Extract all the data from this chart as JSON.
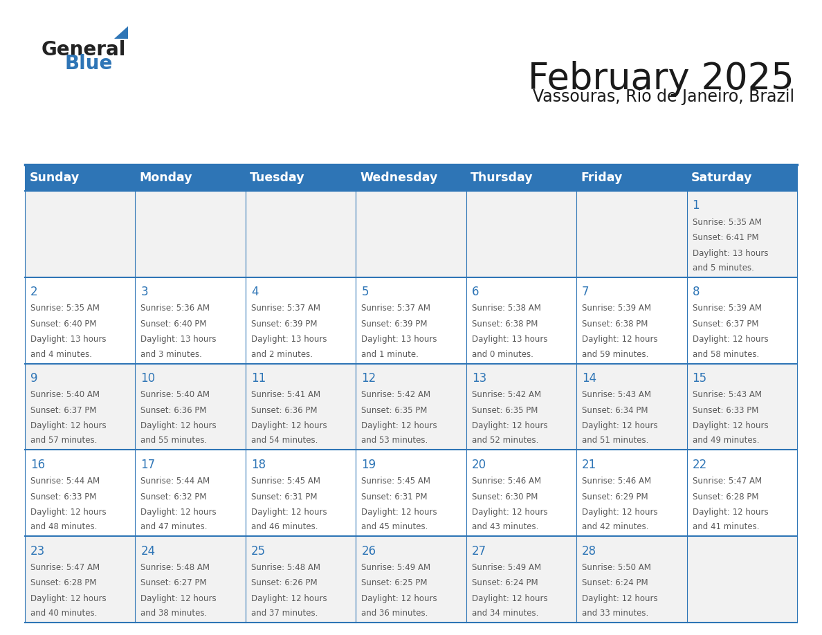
{
  "title": "February 2025",
  "subtitle": "Vassouras, Rio de Janeiro, Brazil",
  "header_bg": "#2e75b6",
  "header_text_color": "#ffffff",
  "cell_bg_week1": "#f2f2f2",
  "cell_bg_week2": "#ffffff",
  "cell_bg_week3": "#f2f2f2",
  "cell_bg_week4": "#ffffff",
  "cell_bg_week5": "#f2f2f2",
  "day_number_color": "#2e75b6",
  "info_text_color": "#595959",
  "border_color": "#2e75b6",
  "days_of_week": [
    "Sunday",
    "Monday",
    "Tuesday",
    "Wednesday",
    "Thursday",
    "Friday",
    "Saturday"
  ],
  "weeks": [
    [
      {
        "day": null,
        "sunrise": null,
        "sunset": null,
        "daylight": null
      },
      {
        "day": null,
        "sunrise": null,
        "sunset": null,
        "daylight": null
      },
      {
        "day": null,
        "sunrise": null,
        "sunset": null,
        "daylight": null
      },
      {
        "day": null,
        "sunrise": null,
        "sunset": null,
        "daylight": null
      },
      {
        "day": null,
        "sunrise": null,
        "sunset": null,
        "daylight": null
      },
      {
        "day": null,
        "sunrise": null,
        "sunset": null,
        "daylight": null
      },
      {
        "day": 1,
        "sunrise": "5:35 AM",
        "sunset": "6:41 PM",
        "daylight": "13 hours and 5 minutes."
      }
    ],
    [
      {
        "day": 2,
        "sunrise": "5:35 AM",
        "sunset": "6:40 PM",
        "daylight": "13 hours and 4 minutes."
      },
      {
        "day": 3,
        "sunrise": "5:36 AM",
        "sunset": "6:40 PM",
        "daylight": "13 hours and 3 minutes."
      },
      {
        "day": 4,
        "sunrise": "5:37 AM",
        "sunset": "6:39 PM",
        "daylight": "13 hours and 2 minutes."
      },
      {
        "day": 5,
        "sunrise": "5:37 AM",
        "sunset": "6:39 PM",
        "daylight": "13 hours and 1 minute."
      },
      {
        "day": 6,
        "sunrise": "5:38 AM",
        "sunset": "6:38 PM",
        "daylight": "13 hours and 0 minutes."
      },
      {
        "day": 7,
        "sunrise": "5:39 AM",
        "sunset": "6:38 PM",
        "daylight": "12 hours and 59 minutes."
      },
      {
        "day": 8,
        "sunrise": "5:39 AM",
        "sunset": "6:37 PM",
        "daylight": "12 hours and 58 minutes."
      }
    ],
    [
      {
        "day": 9,
        "sunrise": "5:40 AM",
        "sunset": "6:37 PM",
        "daylight": "12 hours and 57 minutes."
      },
      {
        "day": 10,
        "sunrise": "5:40 AM",
        "sunset": "6:36 PM",
        "daylight": "12 hours and 55 minutes."
      },
      {
        "day": 11,
        "sunrise": "5:41 AM",
        "sunset": "6:36 PM",
        "daylight": "12 hours and 54 minutes."
      },
      {
        "day": 12,
        "sunrise": "5:42 AM",
        "sunset": "6:35 PM",
        "daylight": "12 hours and 53 minutes."
      },
      {
        "day": 13,
        "sunrise": "5:42 AM",
        "sunset": "6:35 PM",
        "daylight": "12 hours and 52 minutes."
      },
      {
        "day": 14,
        "sunrise": "5:43 AM",
        "sunset": "6:34 PM",
        "daylight": "12 hours and 51 minutes."
      },
      {
        "day": 15,
        "sunrise": "5:43 AM",
        "sunset": "6:33 PM",
        "daylight": "12 hours and 49 minutes."
      }
    ],
    [
      {
        "day": 16,
        "sunrise": "5:44 AM",
        "sunset": "6:33 PM",
        "daylight": "12 hours and 48 minutes."
      },
      {
        "day": 17,
        "sunrise": "5:44 AM",
        "sunset": "6:32 PM",
        "daylight": "12 hours and 47 minutes."
      },
      {
        "day": 18,
        "sunrise": "5:45 AM",
        "sunset": "6:31 PM",
        "daylight": "12 hours and 46 minutes."
      },
      {
        "day": 19,
        "sunrise": "5:45 AM",
        "sunset": "6:31 PM",
        "daylight": "12 hours and 45 minutes."
      },
      {
        "day": 20,
        "sunrise": "5:46 AM",
        "sunset": "6:30 PM",
        "daylight": "12 hours and 43 minutes."
      },
      {
        "day": 21,
        "sunrise": "5:46 AM",
        "sunset": "6:29 PM",
        "daylight": "12 hours and 42 minutes."
      },
      {
        "day": 22,
        "sunrise": "5:47 AM",
        "sunset": "6:28 PM",
        "daylight": "12 hours and 41 minutes."
      }
    ],
    [
      {
        "day": 23,
        "sunrise": "5:47 AM",
        "sunset": "6:28 PM",
        "daylight": "12 hours and 40 minutes."
      },
      {
        "day": 24,
        "sunrise": "5:48 AM",
        "sunset": "6:27 PM",
        "daylight": "12 hours and 38 minutes."
      },
      {
        "day": 25,
        "sunrise": "5:48 AM",
        "sunset": "6:26 PM",
        "daylight": "12 hours and 37 minutes."
      },
      {
        "day": 26,
        "sunrise": "5:49 AM",
        "sunset": "6:25 PM",
        "daylight": "12 hours and 36 minutes."
      },
      {
        "day": 27,
        "sunrise": "5:49 AM",
        "sunset": "6:24 PM",
        "daylight": "12 hours and 34 minutes."
      },
      {
        "day": 28,
        "sunrise": "5:50 AM",
        "sunset": "6:24 PM",
        "daylight": "12 hours and 33 minutes."
      },
      {
        "day": null,
        "sunrise": null,
        "sunset": null,
        "daylight": null
      }
    ]
  ],
  "row_bg_colors": [
    "#f2f2f2",
    "#ffffff",
    "#f2f2f2",
    "#ffffff",
    "#f2f2f2"
  ]
}
